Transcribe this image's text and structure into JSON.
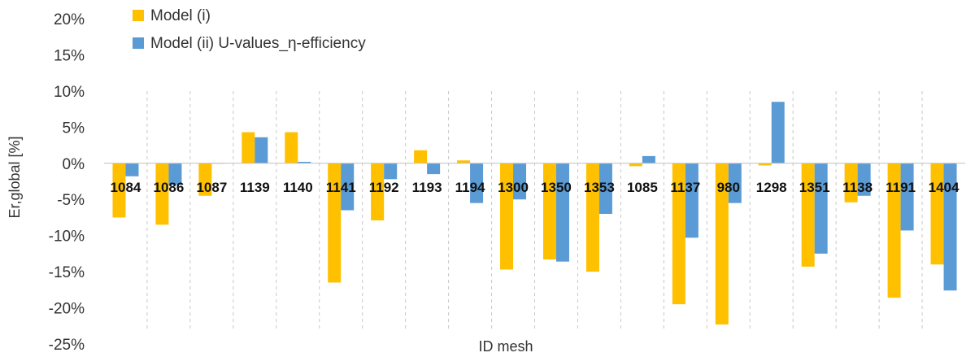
{
  "chart_data": {
    "type": "bar",
    "xlabel": "ID mesh",
    "ylabel": "Er,global [%]",
    "ylim": [
      -25,
      20
    ],
    "yticks": [
      20,
      15,
      10,
      5,
      0,
      -5,
      -10,
      -15,
      -20,
      -25
    ],
    "ytick_labels": [
      "20%",
      "15%",
      "10%",
      "5%",
      "0%",
      "-5%",
      "-10%",
      "-15%",
      "-20%",
      "-25%"
    ],
    "grid": "vertical dashed separators",
    "legend_position": "top-left",
    "categories": [
      "1084",
      "1086",
      "1087",
      "1139",
      "1140",
      "1141",
      "1192",
      "1193",
      "1194",
      "1300",
      "1350",
      "1353",
      "1085",
      "1137",
      "980",
      "1298",
      "1351",
      "1138",
      "1191",
      "1404"
    ],
    "series": [
      {
        "name": "Model (i)",
        "color": "#FFC000",
        "values": [
          -7.5,
          -8.5,
          -4.5,
          4.3,
          4.3,
          -16.5,
          -7.9,
          1.8,
          0.4,
          -14.7,
          -13.3,
          -15.0,
          -0.4,
          -19.5,
          -22.3,
          -0.3,
          -14.3,
          -5.4,
          -18.6,
          -14.0
        ]
      },
      {
        "name": "Model (ii) U-values_η-efficiency",
        "color": "#5B9BD5",
        "values": [
          -1.8,
          -3.0,
          0.0,
          3.6,
          0.2,
          -6.5,
          -2.2,
          -1.5,
          -5.5,
          -5.0,
          -13.6,
          -7.0,
          1.0,
          -10.3,
          -5.5,
          8.5,
          -12.5,
          -4.5,
          -9.3,
          -17.6
        ]
      }
    ]
  }
}
